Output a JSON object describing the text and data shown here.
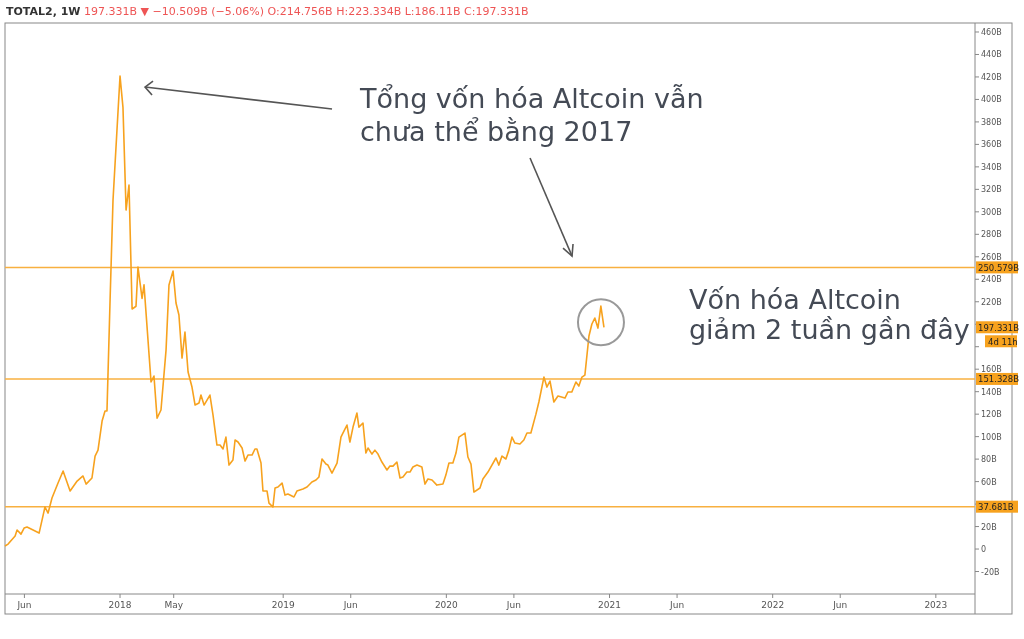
{
  "chart_data": {
    "type": "line",
    "title": "TOTAL2, 1W",
    "subtitle": "197.331B ▼ −10.509B (−5.06%) O:214.756B H:223.334B L:186.11B C:197.331B",
    "x": [
      2017.295,
      2017.314,
      2017.357,
      2017.369,
      2017.393,
      2017.412,
      2017.43,
      2017.504,
      2017.54,
      2017.559,
      2017.583,
      2017.62,
      2017.651,
      2017.694,
      2017.737,
      2017.773,
      2017.792,
      2017.828,
      2017.847,
      2017.865,
      2017.89,
      2017.908,
      2017.92,
      2017.939,
      2017.957,
      2018.0,
      2018.018,
      2018.037,
      2018.055,
      2018.074,
      2018.098,
      2018.11,
      2018.135,
      2018.147,
      2018.19,
      2018.208,
      2018.227,
      2018.251,
      2018.282,
      2018.3,
      2018.325,
      2018.343,
      2018.361,
      2018.38,
      2018.398,
      2018.417,
      2018.441,
      2018.46,
      2018.484,
      2018.496,
      2018.515,
      2018.551,
      2018.57,
      2018.594,
      2018.613,
      2018.631,
      2018.649,
      2018.668,
      2018.692,
      2018.705,
      2018.723,
      2018.748,
      2018.766,
      2018.784,
      2018.809,
      2018.827,
      2018.839,
      2018.864,
      2018.876,
      2018.901,
      2018.913,
      2018.937,
      2018.95,
      2018.968,
      2018.993,
      2019.011,
      2019.029,
      2019.066,
      2019.084,
      2019.121,
      2019.146,
      2019.176,
      2019.201,
      2019.219,
      2019.238,
      2019.262,
      2019.274,
      2019.299,
      2019.33,
      2019.354,
      2019.366,
      2019.391,
      2019.409,
      2019.428,
      2019.452,
      2019.464,
      2019.489,
      2019.507,
      2019.52,
      2019.544,
      2019.562,
      2019.581,
      2019.605,
      2019.636,
      2019.654,
      2019.673,
      2019.697,
      2019.716,
      2019.734,
      2019.758,
      2019.777,
      2019.795,
      2019.82,
      2019.85,
      2019.869,
      2019.887,
      2019.912,
      2019.942,
      2019.979,
      2019.997,
      2020.016,
      2020.04,
      2020.059,
      2020.077,
      2020.114,
      2020.132,
      2020.151,
      2020.169,
      2020.206,
      2020.224,
      2020.255,
      2020.304,
      2020.322,
      2020.341,
      2020.365,
      2020.383,
      2020.402,
      2020.42,
      2020.451,
      2020.475,
      2020.494,
      2020.518,
      2020.549,
      2020.567,
      2020.598,
      2020.616,
      2020.635,
      2020.659,
      2020.684,
      2020.727,
      2020.745,
      2020.769,
      2020.794,
      2020.812,
      2020.831,
      2020.849,
      2020.874,
      2020.892,
      2020.91,
      2020.929,
      2020.947,
      2020.966
    ],
    "series": [
      {
        "color": "#f7a21e",
        "values": [
          2.7,
          4.4,
          11.6,
          16.9,
          13.3,
          18.7,
          19.6,
          14.2,
          37.4,
          32,
          45.4,
          58.7,
          69.4,
          51.6,
          60.5,
          65,
          57.8,
          63.2,
          82.7,
          88,
          113.9,
          122.8,
          122.8,
          221.5,
          310.5,
          420.8,
          393,
          301.6,
          323.8,
          213.5,
          216,
          250.9,
          223,
          235,
          148.6,
          153.9,
          116.5,
          123.7,
          177,
          234.9,
          247.3,
          218.9,
          208.2,
          169.9,
          193,
          157.5,
          144.1,
          128.1,
          129.9,
          137,
          128.1,
          137,
          119.2,
          92.5,
          92.5,
          89,
          99.6,
          74.7,
          79.2,
          97,
          95.2,
          89.9,
          78.3,
          83.6,
          83.6,
          89,
          89,
          76.5,
          51.6,
          51.6,
          40.9,
          37.4,
          54.3,
          55.2,
          58.7,
          48,
          48.9,
          46.3,
          51.6,
          53.4,
          55.2,
          59.6,
          61.4,
          64.1,
          80.1,
          75.6,
          74.7,
          67.6,
          76.5,
          99.6,
          103.2,
          110.3,
          95.2,
          108.5,
          121,
          108.5,
          112.1,
          85.4,
          89.9,
          84.5,
          88,
          84.5,
          77.4,
          70.3,
          73.8,
          73.8,
          77.4,
          63.2,
          64.1,
          68.5,
          68.5,
          73,
          74.7,
          73,
          57.8,
          62.3,
          61.4,
          56.9,
          57.8,
          65.8,
          76.5,
          76.5,
          85.4,
          99.6,
          103.2,
          81.9,
          75.6,
          50.7,
          54.3,
          62.3,
          68.5,
          81,
          74.7,
          82.7,
          80.1,
          88,
          99.6,
          94.3,
          93.4,
          97,
          103.2,
          103.2,
          120,
          130.8,
          153,
          144.1,
          149.5,
          130.8,
          136.1,
          134.3,
          139.7,
          139.7,
          148.6,
          145,
          153,
          154.8,
          189.5,
          200.2,
          205.5,
          196.6,
          216.2,
          197.3
        ]
      }
    ],
    "xlim": [
      2017.295,
      2023.24
    ],
    "xticks": [
      {
        "value": 2017.414,
        "label": "Jun"
      },
      2018,
      {
        "value": 2018.329,
        "label": "May"
      },
      2019,
      {
        "value": 2019.414,
        "label": "Jun"
      },
      2020,
      {
        "value": 2020.414,
        "label": "Jun"
      },
      2021,
      {
        "value": 2021.414,
        "label": "Jun"
      },
      2022,
      {
        "value": 2022.414,
        "label": "Jun"
      },
      2023
    ],
    "ylim": [
      -40,
      468
    ],
    "yticks": [
      {
        "value": -20,
        "label": "-20B"
      },
      0,
      {
        "value": 20,
        "label": "20B"
      },
      {
        "value": 40,
        "label": null
      },
      {
        "value": 60,
        "label": "60B"
      },
      {
        "value": 80,
        "label": "80B"
      },
      {
        "value": 100,
        "label": "100B"
      },
      {
        "value": 120,
        "label": "120B"
      },
      {
        "value": 140,
        "label": "140B"
      },
      {
        "value": 160,
        "label": "160B"
      },
      {
        "value": 180,
        "label": null
      },
      {
        "value": 200,
        "label": null
      },
      {
        "value": 220,
        "label": "220B"
      },
      {
        "value": 240,
        "label": "240B"
      },
      {
        "value": 260,
        "label": "260B"
      },
      {
        "value": 280,
        "label": "280B"
      },
      {
        "value": 300,
        "label": "300B"
      },
      {
        "value": 320,
        "label": "320B"
      },
      {
        "value": 340,
        "label": "340B"
      },
      {
        "value": 360,
        "label": "360B"
      },
      {
        "value": 380,
        "label": "380B"
      },
      {
        "value": 400,
        "label": "400B"
      },
      {
        "value": 420,
        "label": "420B"
      },
      {
        "value": 440,
        "label": "440B"
      },
      {
        "value": 460,
        "label": "460B"
      }
    ],
    "ref_lines": [
      {
        "axis": "y",
        "value": 250.579,
        "label": "250.579B",
        "color": "#f8b040"
      },
      {
        "axis": "y",
        "value": 151.328,
        "label": "151.328B",
        "color": "#f8b040"
      },
      {
        "axis": "y",
        "value": 37.681,
        "label": "37.681B",
        "color": "#f8b040"
      }
    ],
    "annotations": [
      "Tổng vốn hóa Altcoin vẫn chưa thể bằng 2017",
      "Vốn hóa Altcoin giảm 2 tuần gần đây",
      "197.331B",
      "4d 11h"
    ],
    "grid": false
  }
}
